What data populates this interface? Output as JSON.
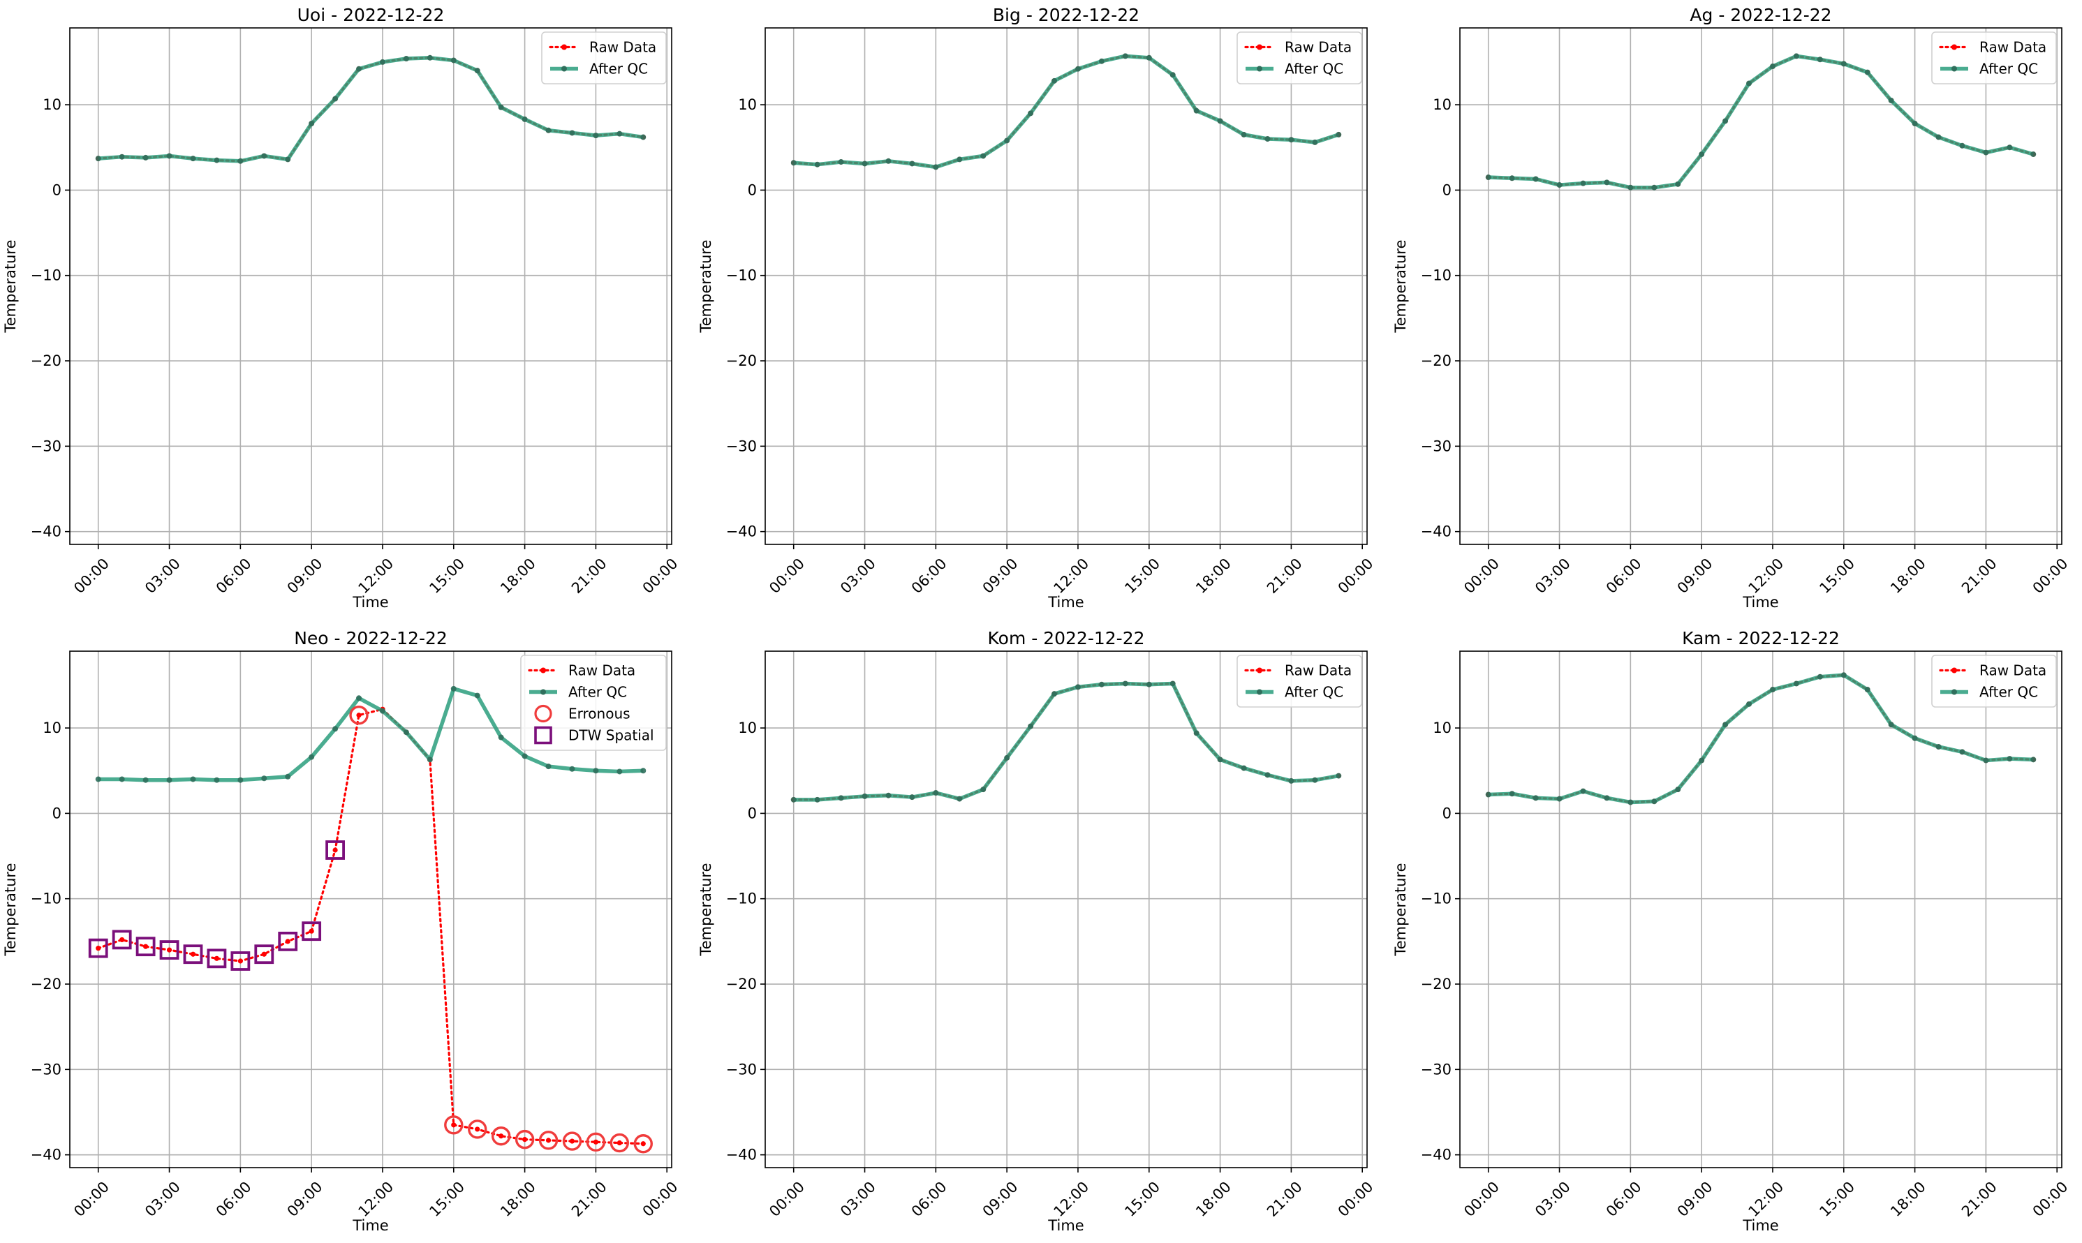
{
  "chart_data": [
    {
      "type": "line",
      "title": "Uoi - 2022-12-22",
      "xlabel": "Time",
      "ylabel": "Temperature",
      "xticks": [
        "00:00",
        "03:00",
        "06:00",
        "09:00",
        "12:00",
        "15:00",
        "18:00",
        "21:00",
        "00:00"
      ],
      "yticks": [
        -40,
        -30,
        -20,
        -10,
        0,
        10
      ],
      "xlim": [
        -1.2,
        24.2
      ],
      "ylim": [
        -41.5,
        19
      ],
      "grid": true,
      "legend": "top-right",
      "x": [
        0,
        1,
        2,
        3,
        4,
        5,
        6,
        7,
        8,
        9,
        10,
        11,
        12,
        13,
        14,
        15,
        16,
        17,
        18,
        19,
        20,
        21,
        22,
        23
      ],
      "series": [
        {
          "name": "Raw Data",
          "color": "#ff0000",
          "values": [
            3.7,
            3.9,
            3.8,
            4.0,
            3.7,
            3.5,
            3.4,
            4.0,
            3.6,
            7.8,
            10.7,
            14.2,
            15.0,
            15.4,
            15.5,
            15.2,
            14.0,
            9.7,
            8.3,
            7.0,
            6.7,
            6.4,
            6.6,
            6.2
          ]
        },
        {
          "name": "After QC",
          "color": "#2a9d7c",
          "values": [
            3.7,
            3.9,
            3.8,
            4.0,
            3.7,
            3.5,
            3.4,
            4.0,
            3.6,
            7.8,
            10.7,
            14.2,
            15.0,
            15.4,
            15.5,
            15.2,
            14.0,
            9.7,
            8.3,
            7.0,
            6.7,
            6.4,
            6.6,
            6.2
          ]
        }
      ]
    },
    {
      "type": "line",
      "title": "Big - 2022-12-22",
      "xlabel": "Time",
      "ylabel": "Temperature",
      "xticks": [
        "00:00",
        "03:00",
        "06:00",
        "09:00",
        "12:00",
        "15:00",
        "18:00",
        "21:00",
        "00:00"
      ],
      "yticks": [
        -40,
        -30,
        -20,
        -10,
        0,
        10
      ],
      "xlim": [
        -1.2,
        24.2
      ],
      "ylim": [
        -41.5,
        19
      ],
      "grid": true,
      "legend": "top-right",
      "x": [
        0,
        1,
        2,
        3,
        4,
        5,
        6,
        7,
        8,
        9,
        10,
        11,
        12,
        13,
        14,
        15,
        16,
        17,
        18,
        19,
        20,
        21,
        22,
        23
      ],
      "series": [
        {
          "name": "Raw Data",
          "color": "#ff0000",
          "values": [
            3.2,
            3.0,
            3.3,
            3.1,
            3.4,
            3.1,
            2.7,
            3.6,
            4.0,
            5.8,
            9.0,
            12.8,
            14.2,
            15.1,
            15.7,
            15.5,
            13.5,
            9.3,
            8.1,
            6.5,
            6.0,
            5.9,
            5.6,
            6.5
          ]
        },
        {
          "name": "After QC",
          "color": "#2a9d7c",
          "values": [
            3.2,
            3.0,
            3.3,
            3.1,
            3.4,
            3.1,
            2.7,
            3.6,
            4.0,
            5.8,
            9.0,
            12.8,
            14.2,
            15.1,
            15.7,
            15.5,
            13.5,
            9.3,
            8.1,
            6.5,
            6.0,
            5.9,
            5.6,
            6.5
          ]
        }
      ]
    },
    {
      "type": "line",
      "title": "Ag - 2022-12-22",
      "xlabel": "Time",
      "ylabel": "Temperature",
      "xticks": [
        "00:00",
        "03:00",
        "06:00",
        "09:00",
        "12:00",
        "15:00",
        "18:00",
        "21:00",
        "00:00"
      ],
      "yticks": [
        -40,
        -30,
        -20,
        -10,
        0,
        10
      ],
      "xlim": [
        -1.2,
        24.2
      ],
      "ylim": [
        -41.5,
        19
      ],
      "grid": true,
      "legend": "top-right",
      "x": [
        0,
        1,
        2,
        3,
        4,
        5,
        6,
        7,
        8,
        9,
        10,
        11,
        12,
        13,
        14,
        15,
        16,
        17,
        18,
        19,
        20,
        21,
        22,
        23
      ],
      "series": [
        {
          "name": "Raw Data",
          "color": "#ff0000",
          "values": [
            1.5,
            1.4,
            1.3,
            0.6,
            0.8,
            0.9,
            0.3,
            0.3,
            0.7,
            4.2,
            8.1,
            12.5,
            14.5,
            15.7,
            15.3,
            14.8,
            13.8,
            10.5,
            7.8,
            6.2,
            5.2,
            4.4,
            5.0,
            4.2
          ]
        },
        {
          "name": "After QC",
          "color": "#2a9d7c",
          "values": [
            1.5,
            1.4,
            1.3,
            0.6,
            0.8,
            0.9,
            0.3,
            0.3,
            0.7,
            4.2,
            8.1,
            12.5,
            14.5,
            15.7,
            15.3,
            14.8,
            13.8,
            10.5,
            7.8,
            6.2,
            5.2,
            4.4,
            5.0,
            4.2
          ]
        }
      ]
    },
    {
      "type": "line",
      "title": "Neo - 2022-12-22",
      "xlabel": "Time",
      "ylabel": "Temperature",
      "xticks": [
        "00:00",
        "03:00",
        "06:00",
        "09:00",
        "12:00",
        "15:00",
        "18:00",
        "21:00",
        "00:00"
      ],
      "yticks": [
        -40,
        -30,
        -20,
        -10,
        0,
        10
      ],
      "xlim": [
        -1.2,
        24.2
      ],
      "ylim": [
        -41.5,
        19
      ],
      "grid": true,
      "legend": "top-right",
      "x": [
        0,
        1,
        2,
        3,
        4,
        5,
        6,
        7,
        8,
        9,
        10,
        11,
        12,
        13,
        14,
        15,
        16,
        17,
        18,
        19,
        20,
        21,
        22,
        23
      ],
      "series": [
        {
          "name": "Raw Data",
          "color": "#ff0000",
          "values": [
            -15.8,
            -14.8,
            -15.6,
            -16.0,
            -16.5,
            -17.0,
            -17.3,
            -16.5,
            -15.0,
            -13.8,
            -4.3,
            11.5,
            12.2,
            9.5,
            6.3,
            -36.5,
            -37.0,
            -37.8,
            -38.2,
            -38.3,
            -38.4,
            -38.5,
            -38.6,
            -38.7
          ]
        },
        {
          "name": "After QC",
          "color": "#2a9d7c",
          "values": [
            4.0,
            4.0,
            3.9,
            3.9,
            4.0,
            3.9,
            3.9,
            4.1,
            4.3,
            6.6,
            9.9,
            13.5,
            12.0,
            9.5,
            6.3,
            14.6,
            13.8,
            8.9,
            6.7,
            5.5,
            5.2,
            5.0,
            4.9,
            5.0
          ]
        },
        {
          "name": "Erronous",
          "color": "#f03c3c",
          "marker": "circle",
          "x": [
            11,
            15,
            16,
            17,
            18,
            19,
            20,
            21,
            22,
            23
          ],
          "values": [
            11.5,
            -36.5,
            -37.0,
            -37.8,
            -38.2,
            -38.3,
            -38.4,
            -38.5,
            -38.6,
            -38.7
          ]
        },
        {
          "name": "DTW Spatial",
          "color": "#7b0f7b",
          "marker": "square",
          "x": [
            0,
            1,
            2,
            3,
            4,
            5,
            6,
            7,
            8,
            9,
            10
          ],
          "values": [
            -15.8,
            -14.8,
            -15.6,
            -16.0,
            -16.5,
            -17.0,
            -17.3,
            -16.5,
            -15.0,
            -13.8,
            -4.3
          ]
        }
      ]
    },
    {
      "type": "line",
      "title": "Kom - 2022-12-22",
      "xlabel": "Time",
      "ylabel": "Temperature",
      "xticks": [
        "00:00",
        "03:00",
        "06:00",
        "09:00",
        "12:00",
        "15:00",
        "18:00",
        "21:00",
        "00:00"
      ],
      "yticks": [
        -40,
        -30,
        -20,
        -10,
        0,
        10
      ],
      "xlim": [
        -1.2,
        24.2
      ],
      "ylim": [
        -41.5,
        19
      ],
      "grid": true,
      "legend": "top-right",
      "x": [
        0,
        1,
        2,
        3,
        4,
        5,
        6,
        7,
        8,
        9,
        10,
        11,
        12,
        13,
        14,
        15,
        16,
        17,
        18,
        19,
        20,
        21,
        22,
        23
      ],
      "series": [
        {
          "name": "Raw Data",
          "color": "#ff0000",
          "values": [
            1.6,
            1.6,
            1.8,
            2.0,
            2.1,
            1.9,
            2.4,
            1.7,
            2.8,
            6.5,
            10.2,
            14.0,
            14.8,
            15.1,
            15.2,
            15.1,
            15.2,
            9.4,
            6.3,
            5.3,
            4.5,
            3.8,
            3.9,
            4.4
          ]
        },
        {
          "name": "After QC",
          "color": "#2a9d7c",
          "values": [
            1.6,
            1.6,
            1.8,
            2.0,
            2.1,
            1.9,
            2.4,
            1.7,
            2.8,
            6.5,
            10.2,
            14.0,
            14.8,
            15.1,
            15.2,
            15.1,
            15.2,
            9.4,
            6.3,
            5.3,
            4.5,
            3.8,
            3.9,
            4.4
          ]
        }
      ]
    },
    {
      "type": "line",
      "title": "Kam - 2022-12-22",
      "xlabel": "Time",
      "ylabel": "Temperature",
      "xticks": [
        "00:00",
        "03:00",
        "06:00",
        "09:00",
        "12:00",
        "15:00",
        "18:00",
        "21:00",
        "00:00"
      ],
      "yticks": [
        -40,
        -30,
        -20,
        -10,
        0,
        10
      ],
      "xlim": [
        -1.2,
        24.2
      ],
      "ylim": [
        -41.5,
        19
      ],
      "grid": true,
      "legend": "top-right",
      "x": [
        0,
        1,
        2,
        3,
        4,
        5,
        6,
        7,
        8,
        9,
        10,
        11,
        12,
        13,
        14,
        15,
        16,
        17,
        18,
        19,
        20,
        21,
        22,
        23
      ],
      "series": [
        {
          "name": "Raw Data",
          "color": "#ff0000",
          "values": [
            2.2,
            2.3,
            1.8,
            1.7,
            2.6,
            1.8,
            1.3,
            1.4,
            2.8,
            6.2,
            10.4,
            12.8,
            14.5,
            15.2,
            16.0,
            16.2,
            14.5,
            10.4,
            8.8,
            7.8,
            7.2,
            6.2,
            6.4,
            6.3
          ]
        },
        {
          "name": "After QC",
          "color": "#2a9d7c",
          "values": [
            2.2,
            2.3,
            1.8,
            1.7,
            2.6,
            1.8,
            1.3,
            1.4,
            2.8,
            6.2,
            10.4,
            12.8,
            14.5,
            15.2,
            16.0,
            16.2,
            14.5,
            10.4,
            8.8,
            7.8,
            7.2,
            6.2,
            6.4,
            6.3
          ]
        }
      ]
    }
  ]
}
